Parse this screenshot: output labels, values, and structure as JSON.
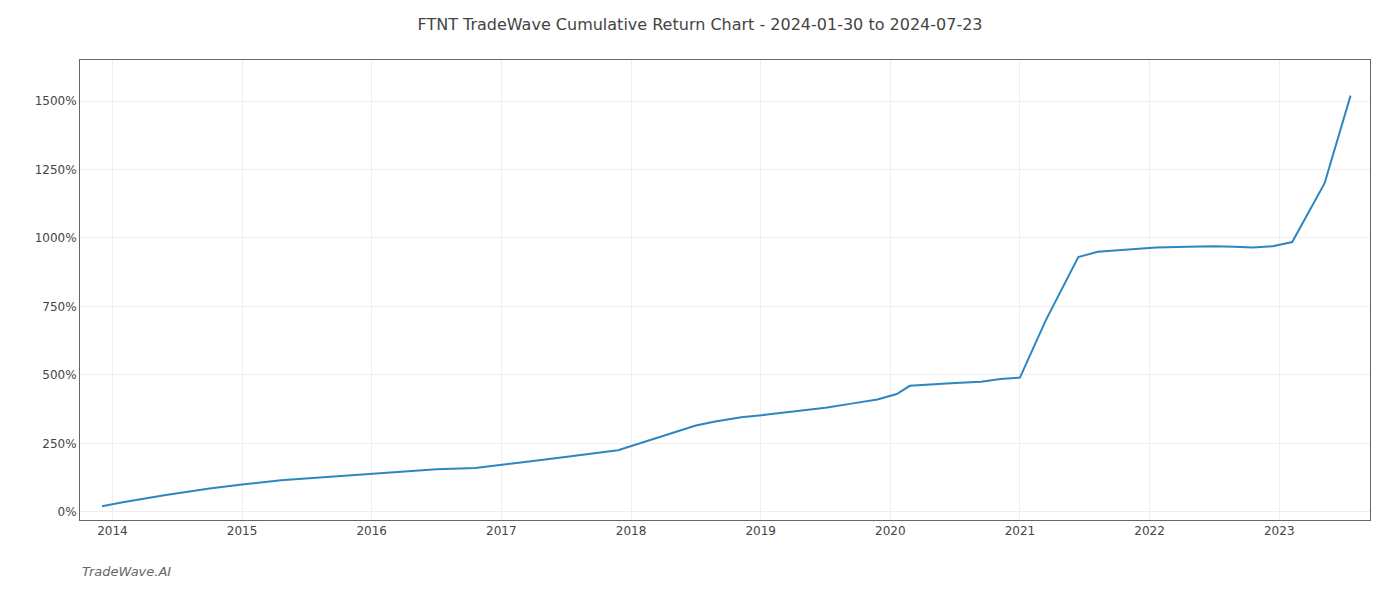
{
  "chart_data": {
    "type": "line",
    "title": "FTNT TradeWave Cumulative Return Chart - 2024-01-30 to 2024-07-23",
    "annotations": [
      "TradeWave.AI"
    ],
    "x": [
      2013.92,
      2014.08,
      2014.4,
      2014.75,
      2015.0,
      2015.3,
      2015.6,
      2015.9,
      2016.2,
      2016.5,
      2016.8,
      2017.0,
      2017.15,
      2017.4,
      2017.65,
      2017.9,
      2018.1,
      2018.3,
      2018.5,
      2018.65,
      2018.85,
      2019.05,
      2019.25,
      2019.5,
      2019.7,
      2019.9,
      2020.05,
      2020.15,
      2020.5,
      2020.7,
      2020.85,
      2021.0,
      2021.2,
      2021.45,
      2021.6,
      2021.75,
      2021.9,
      2022.05,
      2022.3,
      2022.5,
      2022.65,
      2022.8,
      2022.95,
      2023.1,
      2023.35,
      2023.55
    ],
    "values": [
      20,
      35,
      60,
      85,
      100,
      115,
      125,
      135,
      145,
      155,
      160,
      170,
      180,
      195,
      210,
      225,
      255,
      285,
      315,
      330,
      345,
      355,
      365,
      380,
      395,
      410,
      430,
      460,
      470,
      475,
      485,
      490,
      700,
      930,
      950,
      955,
      960,
      965,
      968,
      970,
      968,
      965,
      970,
      985,
      1200,
      1520
    ],
    "color": "#2e86c1",
    "xlim": [
      2013.75,
      2023.7
    ],
    "xticks": [
      2014,
      2015,
      2016,
      2017,
      2018,
      2019,
      2020,
      2021,
      2022,
      2023
    ],
    "ylim": [
      -30,
      1650
    ],
    "yticks": [
      {
        "value": 0,
        "label": "0%"
      },
      {
        "value": 250,
        "label": "250%"
      },
      {
        "value": 500,
        "label": "500%"
      },
      {
        "value": 750,
        "label": "750%"
      },
      {
        "value": 1000,
        "label": "1000%"
      },
      {
        "value": 1250,
        "label": "1250%"
      },
      {
        "value": 1500,
        "label": "1500%"
      }
    ],
    "grid": true
  }
}
